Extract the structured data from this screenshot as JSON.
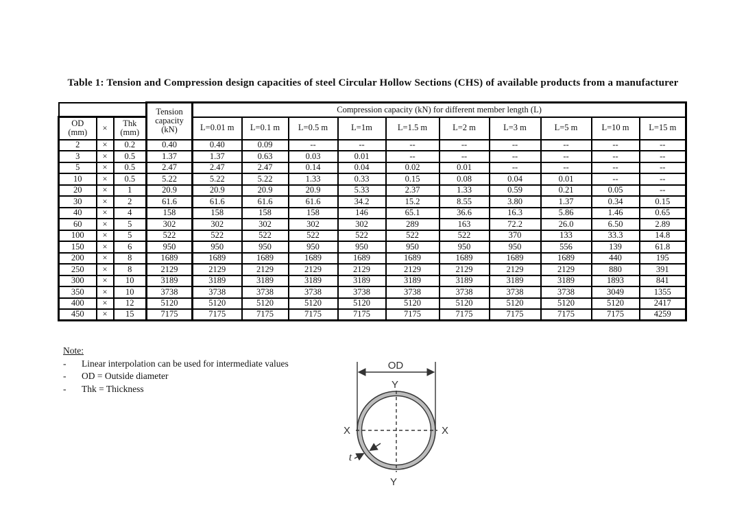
{
  "title": "Table 1: Tension and Compression design capacities of steel Circular Hollow Sections (CHS) of available products from a manufacturer",
  "table": {
    "times_symbol": "×",
    "dash": "--",
    "header": {
      "od": "OD\n(mm)",
      "times": "×",
      "thk": "Thk\n(mm)",
      "tension": "Tension\ncapacity\n(kN)",
      "compression_group": "Compression capacity (kN) for different member length (L)",
      "lengths": [
        "L=0.01 m",
        "L=0.1 m",
        "L=0.5 m",
        "L=1m",
        "L=1.5 m",
        "L=2 m",
        "L=3 m",
        "L=5 m",
        "L=10 m",
        "L=15 m"
      ]
    },
    "rows": [
      {
        "od": "2",
        "thk": "0.2",
        "tension": "0.40",
        "compression": [
          "0.40",
          "0.09",
          "--",
          "--",
          "--",
          "--",
          "--",
          "--",
          "--",
          "--"
        ]
      },
      {
        "od": "3",
        "thk": "0.5",
        "tension": "1.37",
        "compression": [
          "1.37",
          "0.63",
          "0.03",
          "0.01",
          "--",
          "--",
          "--",
          "--",
          "--",
          "--"
        ]
      },
      {
        "od": "5",
        "thk": "0.5",
        "tension": "2.47",
        "compression": [
          "2.47",
          "2.47",
          "0.14",
          "0.04",
          "0.02",
          "0.01",
          "--",
          "--",
          "--",
          "--"
        ]
      },
      {
        "od": "10",
        "thk": "0.5",
        "tension": "5.22",
        "compression": [
          "5.22",
          "5.22",
          "1.33",
          "0.33",
          "0.15",
          "0.08",
          "0.04",
          "0.01",
          "--",
          "--"
        ]
      },
      {
        "od": "20",
        "thk": "1",
        "tension": "20.9",
        "compression": [
          "20.9",
          "20.9",
          "20.9",
          "5.33",
          "2.37",
          "1.33",
          "0.59",
          "0.21",
          "0.05",
          "--"
        ]
      },
      {
        "od": "30",
        "thk": "2",
        "tension": "61.6",
        "compression": [
          "61.6",
          "61.6",
          "61.6",
          "34.2",
          "15.2",
          "8.55",
          "3.80",
          "1.37",
          "0.34",
          "0.15"
        ]
      },
      {
        "od": "40",
        "thk": "4",
        "tension": "158",
        "compression": [
          "158",
          "158",
          "158",
          "146",
          "65.1",
          "36.6",
          "16.3",
          "5.86",
          "1.46",
          "0.65"
        ]
      },
      {
        "od": "60",
        "thk": "5",
        "tension": "302",
        "compression": [
          "302",
          "302",
          "302",
          "302",
          "289",
          "163",
          "72.2",
          "26.0",
          "6.50",
          "2.89"
        ]
      },
      {
        "od": "100",
        "thk": "5",
        "tension": "522",
        "compression": [
          "522",
          "522",
          "522",
          "522",
          "522",
          "522",
          "370",
          "133",
          "33.3",
          "14.8"
        ]
      },
      {
        "od": "150",
        "thk": "6",
        "tension": "950",
        "compression": [
          "950",
          "950",
          "950",
          "950",
          "950",
          "950",
          "950",
          "556",
          "139",
          "61.8"
        ]
      },
      {
        "od": "200",
        "thk": "8",
        "tension": "1689",
        "compression": [
          "1689",
          "1689",
          "1689",
          "1689",
          "1689",
          "1689",
          "1689",
          "1689",
          "440",
          "195"
        ]
      },
      {
        "od": "250",
        "thk": "8",
        "tension": "2129",
        "compression": [
          "2129",
          "2129",
          "2129",
          "2129",
          "2129",
          "2129",
          "2129",
          "2129",
          "880",
          "391"
        ]
      },
      {
        "od": "300",
        "thk": "10",
        "tension": "3189",
        "compression": [
          "3189",
          "3189",
          "3189",
          "3189",
          "3189",
          "3189",
          "3189",
          "3189",
          "1893",
          "841"
        ]
      },
      {
        "od": "350",
        "thk": "10",
        "tension": "3738",
        "compression": [
          "3738",
          "3738",
          "3738",
          "3738",
          "3738",
          "3738",
          "3738",
          "3738",
          "3049",
          "1355"
        ]
      },
      {
        "od": "400",
        "thk": "12",
        "tension": "5120",
        "compression": [
          "5120",
          "5120",
          "5120",
          "5120",
          "5120",
          "5120",
          "5120",
          "5120",
          "5120",
          "2417"
        ]
      },
      {
        "od": "450",
        "thk": "15",
        "tension": "7175",
        "compression": [
          "7175",
          "7175",
          "7175",
          "7175",
          "7175",
          "7175",
          "7175",
          "7175",
          "7175",
          "4259"
        ]
      }
    ]
  },
  "notes": {
    "heading": "Note:",
    "dash": "-",
    "items": [
      "Linear interpolation can be used for intermediate values",
      "OD = Outside diameter",
      "Thk = Thickness"
    ]
  },
  "diagram": {
    "od_label": "OD",
    "x_label": "X",
    "y_label": "Y",
    "t_label": "t"
  }
}
